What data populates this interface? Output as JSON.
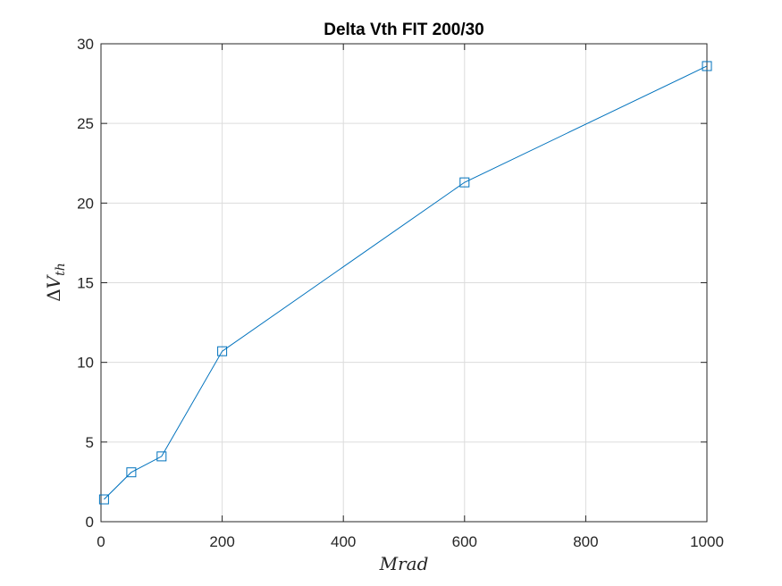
{
  "chart_data": {
    "type": "line",
    "title": "Delta Vth FIT 200/30",
    "xlabel": "Mrad",
    "ylabel_symbol": "Δ",
    "ylabel_var": "V",
    "ylabel_sub": "th",
    "xlim": [
      0,
      1000
    ],
    "ylim": [
      0,
      30
    ],
    "xticks": [
      0,
      200,
      400,
      600,
      800,
      1000
    ],
    "yticks": [
      0,
      5,
      10,
      15,
      20,
      25,
      30
    ],
    "grid": true,
    "marker": "square",
    "series": [
      {
        "x": [
          5,
          50,
          100,
          200,
          600,
          1000
        ],
        "y": [
          1.4,
          3.1,
          4.1,
          10.7,
          21.3,
          28.6
        ],
        "color": "#0072BD"
      }
    ]
  },
  "colors": {
    "axis": "#262626",
    "grid": "#dcdcdc",
    "line": "#0072BD"
  }
}
